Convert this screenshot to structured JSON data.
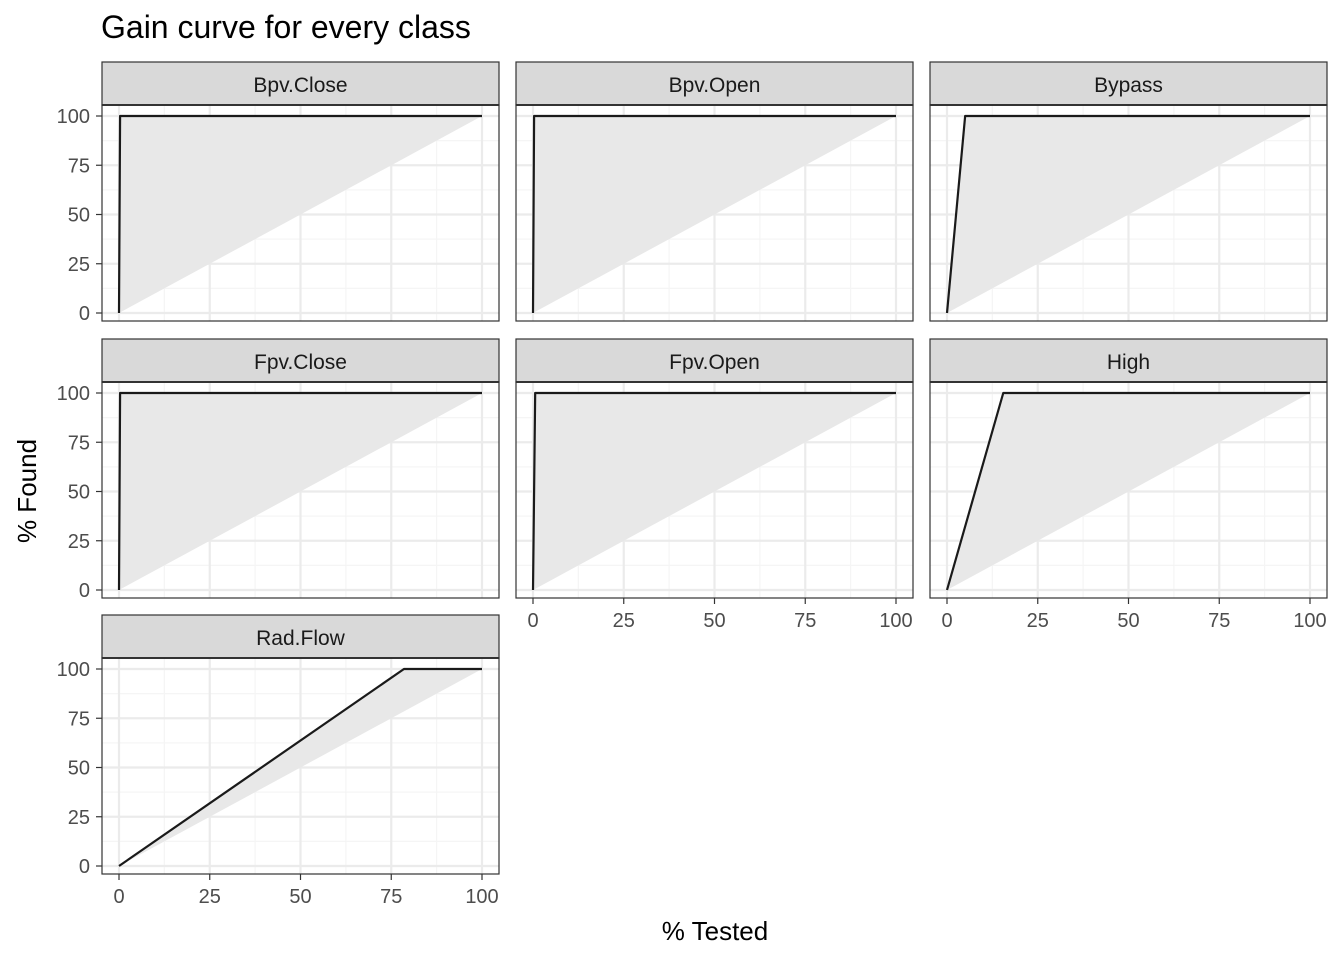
{
  "chart_data": {
    "type": "line",
    "title": "Gain curve for every class",
    "xlabel": "% Tested",
    "ylabel": "% Found",
    "xlim": [
      0,
      100
    ],
    "ylim": [
      0,
      100
    ],
    "x_ticks": [
      0,
      25,
      50,
      75,
      100
    ],
    "y_ticks": [
      0,
      25,
      50,
      75,
      100
    ],
    "grid": true,
    "shaded_region": "between gain curve and diagonal",
    "colors": {
      "line": "#1a1a1a",
      "shade": "#e8e8e8",
      "grid_major": "#ebebeb",
      "grid_minor": "#f5f5f5",
      "strip_bg": "#d9d9d9",
      "panel_border": "#333333"
    },
    "panels": [
      {
        "name": "Bpv.Close",
        "gain_x": [
          0,
          0.3,
          100
        ],
        "gain_y": [
          0,
          100,
          100
        ]
      },
      {
        "name": "Bpv.Open",
        "gain_x": [
          0,
          0.3,
          100
        ],
        "gain_y": [
          0,
          100,
          100
        ]
      },
      {
        "name": "Bypass",
        "gain_x": [
          0,
          5,
          100
        ],
        "gain_y": [
          0,
          100,
          100
        ]
      },
      {
        "name": "Fpv.Close",
        "gain_x": [
          0,
          0.3,
          100
        ],
        "gain_y": [
          0,
          100,
          100
        ]
      },
      {
        "name": "Fpv.Open",
        "gain_x": [
          0,
          0.6,
          100
        ],
        "gain_y": [
          0,
          100,
          100
        ]
      },
      {
        "name": "High",
        "gain_x": [
          0,
          15.5,
          100
        ],
        "gain_y": [
          0,
          100,
          100
        ]
      },
      {
        "name": "Rad.Flow",
        "gain_x": [
          0,
          78.5,
          100
        ],
        "gain_y": [
          0,
          100,
          100
        ]
      }
    ]
  }
}
